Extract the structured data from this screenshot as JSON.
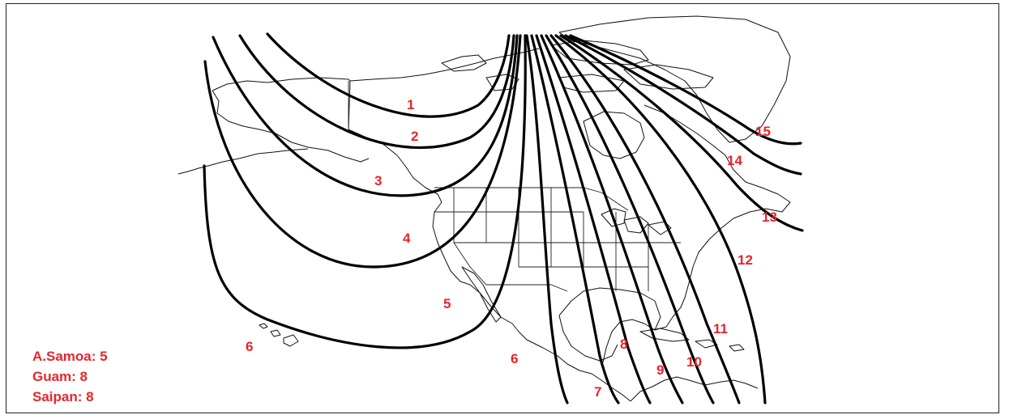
{
  "zone_labels": [
    "1",
    "2",
    "3",
    "4",
    "5",
    "6",
    "6",
    "7",
    "8",
    "9",
    "10",
    "11",
    "12",
    "13",
    "14",
    "15"
  ],
  "legend": [
    {
      "place": "A.Samoa",
      "zone": "5",
      "text": "A.Samoa: 5"
    },
    {
      "place": "Guam",
      "zone": "8",
      "text": "Guam: 8"
    },
    {
      "place": "Saipan",
      "zone": "8",
      "text": "Saipan: 8"
    }
  ],
  "colors": {
    "label": "#e8252b",
    "lines": "#000000",
    "background": "#ffffff"
  }
}
